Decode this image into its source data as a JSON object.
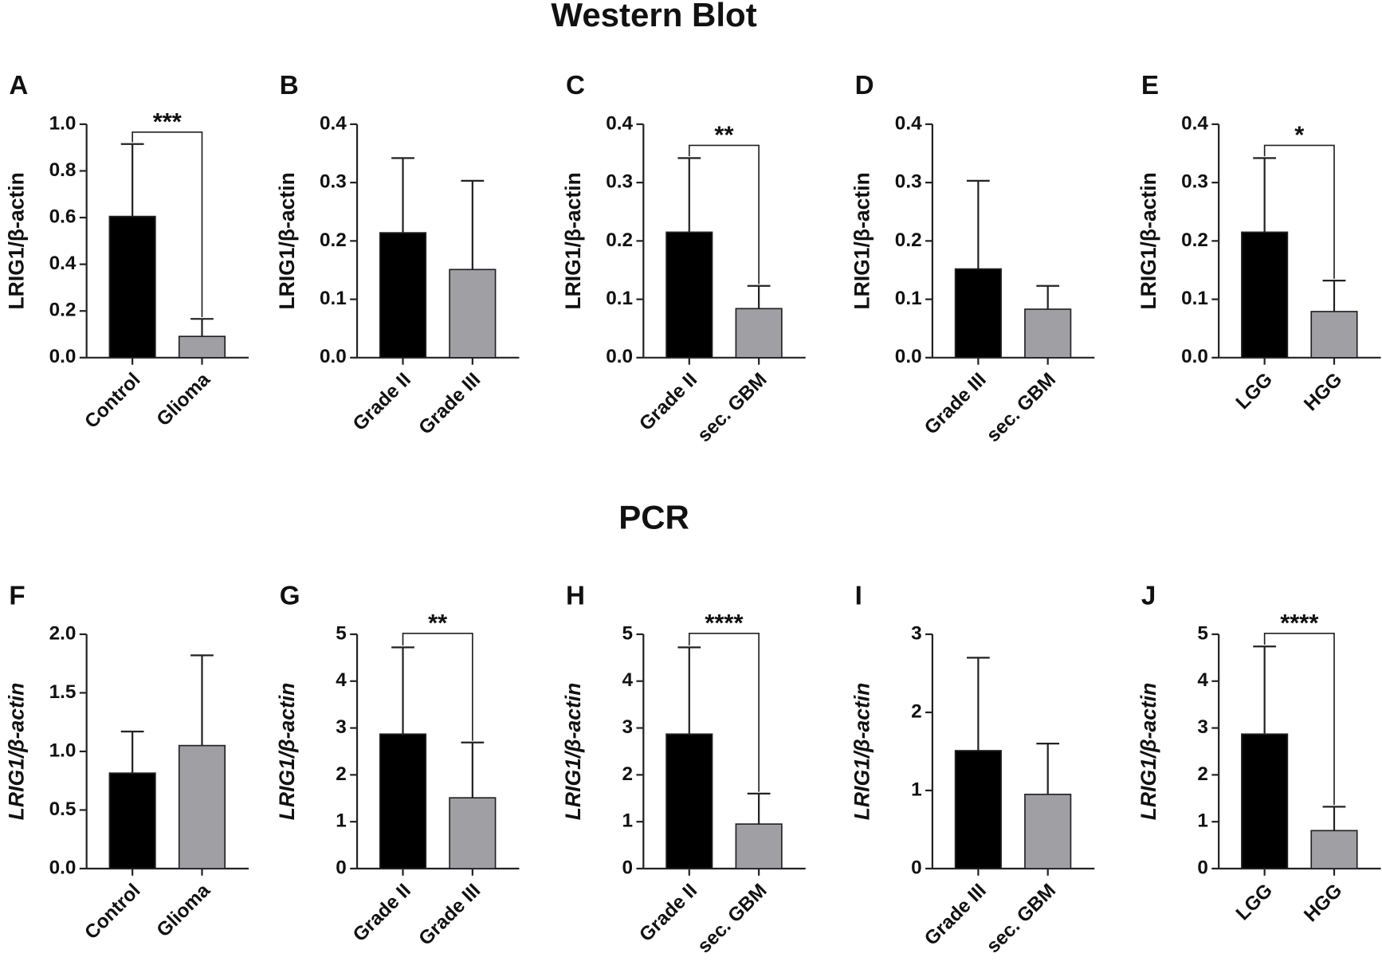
{
  "section_titles": [
    "Western Blot",
    "PCR"
  ],
  "chart_data": [
    {
      "type": "bar",
      "label": "A",
      "ylabel": "LRIG1/β-actin",
      "ylabel_italic": false,
      "categories": [
        "Control",
        "Glioma"
      ],
      "values": [
        0.605,
        0.091
      ],
      "errors": [
        0.31,
        0.075
      ],
      "colors": [
        "#000000",
        "#a0a0a4"
      ],
      "ylim": [
        0,
        1.0
      ],
      "yticks": [
        {
          "value": 0,
          "label": "0.0"
        },
        {
          "value": 0.2,
          "label": "0.2"
        },
        {
          "value": 0.4,
          "label": "0.4"
        },
        {
          "value": 0.6,
          "label": "0.6"
        },
        {
          "value": 0.8,
          "label": "0.8"
        },
        {
          "value": 1.0,
          "label": "1.0"
        }
      ],
      "significance": "***"
    },
    {
      "type": "bar",
      "label": "B",
      "ylabel": "LRIG1/β-actin",
      "ylabel_italic": false,
      "categories": [
        "Grade II",
        "Grade III"
      ],
      "values": [
        0.214,
        0.151
      ],
      "errors": [
        0.128,
        0.152
      ],
      "colors": [
        "#000000",
        "#a0a0a4"
      ],
      "ylim": [
        0,
        0.4
      ],
      "yticks": [
        {
          "value": 0,
          "label": "0.0"
        },
        0.1,
        0.2,
        0.3,
        0.4
      ]
    },
    {
      "type": "bar",
      "label": "C",
      "ylabel": "LRIG1/β-actin",
      "ylabel_italic": false,
      "categories": [
        "Grade II",
        "sec. GBM"
      ],
      "values": [
        0.215,
        0.084
      ],
      "errors": [
        0.127,
        0.039
      ],
      "colors": [
        "#000000",
        "#a0a0a4"
      ],
      "ylim": [
        0,
        0.4
      ],
      "yticks": [
        {
          "value": 0,
          "label": "0.0"
        },
        0.1,
        0.2,
        0.3,
        0.4
      ],
      "significance": "**"
    },
    {
      "type": "bar",
      "label": "D",
      "ylabel": "LRIG1/β-actin",
      "ylabel_italic": false,
      "categories": [
        "Grade III",
        "sec. GBM"
      ],
      "values": [
        0.152,
        0.083
      ],
      "errors": [
        0.151,
        0.04
      ],
      "colors": [
        "#000000",
        "#a0a0a4"
      ],
      "ylim": [
        0,
        0.4
      ],
      "yticks": [
        {
          "value": 0,
          "label": "0.0"
        },
        0.1,
        0.2,
        0.3,
        0.4
      ]
    },
    {
      "type": "bar",
      "label": "E",
      "ylabel": "LRIG1/β-actin",
      "ylabel_italic": false,
      "categories": [
        "LGG",
        "HGG"
      ],
      "values": [
        0.215,
        0.079
      ],
      "errors": [
        0.127,
        0.053
      ],
      "colors": [
        "#000000",
        "#a0a0a4"
      ],
      "ylim": [
        0,
        0.4
      ],
      "yticks": [
        {
          "value": 0,
          "label": "0.0"
        },
        0.1,
        0.2,
        0.3,
        0.4
      ],
      "significance": "*"
    },
    {
      "type": "bar",
      "label": "F",
      "ylabel": "LRIG1/β-actin",
      "ylabel_italic": true,
      "categories": [
        "Control",
        "Glioma"
      ],
      "values": [
        0.815,
        1.05
      ],
      "errors": [
        0.355,
        0.77
      ],
      "colors": [
        "#000000",
        "#a0a0a4"
      ],
      "ylim": [
        0,
        2.0
      ],
      "yticks": [
        {
          "value": 0,
          "label": "0.0"
        },
        {
          "value": 0.5,
          "label": "0.5"
        },
        {
          "value": 1.0,
          "label": "1.0"
        },
        {
          "value": 1.5,
          "label": "1.5"
        },
        {
          "value": 2.0,
          "label": "2.0"
        }
      ]
    },
    {
      "type": "bar",
      "label": "G",
      "ylabel": "LRIG1/β-actin",
      "ylabel_italic": true,
      "categories": [
        "Grade II",
        "Grade III"
      ],
      "values": [
        2.87,
        1.51
      ],
      "errors": [
        1.85,
        1.18
      ],
      "colors": [
        "#000000",
        "#a0a0a4"
      ],
      "ylim": [
        0,
        5
      ],
      "yticks": [
        0,
        1,
        2,
        3,
        4,
        5
      ],
      "significance": "**"
    },
    {
      "type": "bar",
      "label": "H",
      "ylabel": "LRIG1/β-actin",
      "ylabel_italic": true,
      "categories": [
        "Grade II",
        "sec. GBM"
      ],
      "values": [
        2.87,
        0.95
      ],
      "errors": [
        1.85,
        0.65
      ],
      "colors": [
        "#000000",
        "#a0a0a4"
      ],
      "ylim": [
        0,
        5
      ],
      "yticks": [
        0,
        1,
        2,
        3,
        4,
        5
      ],
      "significance": "****"
    },
    {
      "type": "bar",
      "label": "I",
      "ylabel": "LRIG1/β-actin",
      "ylabel_italic": true,
      "categories": [
        "Grade III",
        "sec. GBM"
      ],
      "values": [
        1.51,
        0.95
      ],
      "errors": [
        1.19,
        0.65
      ],
      "colors": [
        "#000000",
        "#a0a0a4"
      ],
      "ylim": [
        0,
        3
      ],
      "yticks": [
        0,
        1,
        2,
        3
      ]
    },
    {
      "type": "bar",
      "label": "J",
      "ylabel": "LRIG1/β-actin",
      "ylabel_italic": true,
      "categories": [
        "LGG",
        "HGG"
      ],
      "values": [
        2.87,
        0.81
      ],
      "errors": [
        1.87,
        0.51
      ],
      "colors": [
        "#000000",
        "#a0a0a4"
      ],
      "ylim": [
        0,
        5
      ],
      "yticks": [
        0,
        1,
        2,
        3,
        4,
        5
      ],
      "significance": "****"
    }
  ]
}
